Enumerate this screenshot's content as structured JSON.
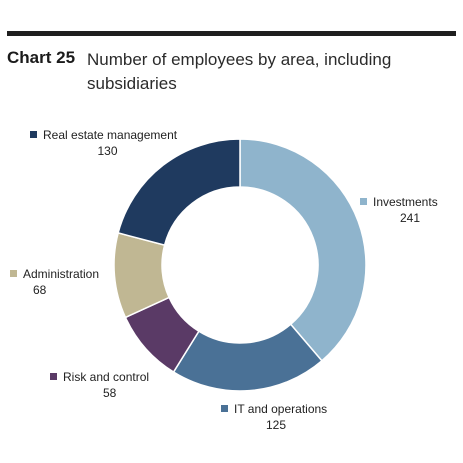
{
  "header": {
    "chart_number": "Chart 25",
    "title": "Number of employees by area, including subsidiaries"
  },
  "chart_data": {
    "type": "pie",
    "donut": true,
    "title": "Number of employees by area, including subsidiaries",
    "legend": "labels around chart",
    "slices": [
      {
        "label": "Investments",
        "value": 241,
        "color": "#8fb4cc"
      },
      {
        "label": "IT and operations",
        "value": 125,
        "color": "#4a7196"
      },
      {
        "label": "Risk and control",
        "value": 58,
        "color": "#5a3a66"
      },
      {
        "label": "Administration",
        "value": 68,
        "color": "#c0b793"
      },
      {
        "label": "Real estate management",
        "value": 130,
        "color": "#1f3a5f"
      }
    ]
  }
}
